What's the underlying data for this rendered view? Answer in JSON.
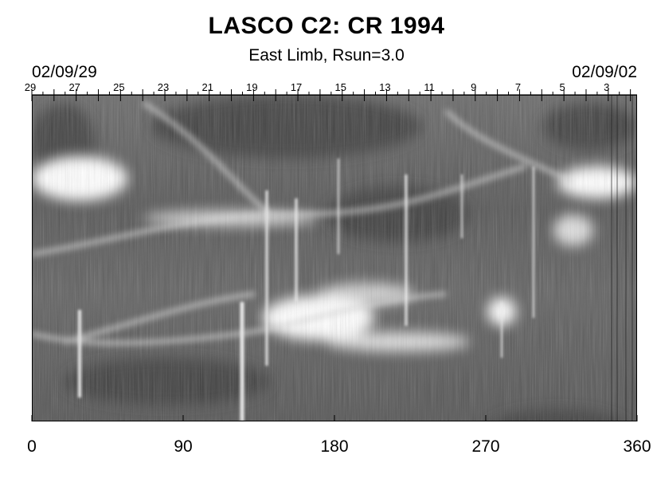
{
  "figure": {
    "title": "LASCO C2: CR 1994",
    "subtitle": "East Limb, Rsun=3.0",
    "date_left": "02/09/29",
    "date_right": "02/09/02",
    "top_day_labels": [
      "29",
      "27",
      "25",
      "23",
      "21",
      "19",
      "17",
      "15",
      "13",
      "11",
      "9",
      "7",
      "5",
      "3"
    ],
    "top_day_positions": [
      29,
      27,
      25,
      23,
      21,
      19,
      17,
      15,
      13,
      11,
      9,
      7,
      5,
      3
    ],
    "x_axis": {
      "range": [
        0,
        360
      ],
      "ticks": [
        0,
        90,
        180,
        270,
        360
      ],
      "tick_labels": [
        "0",
        "90",
        "180",
        "270",
        "360"
      ]
    }
  }
}
